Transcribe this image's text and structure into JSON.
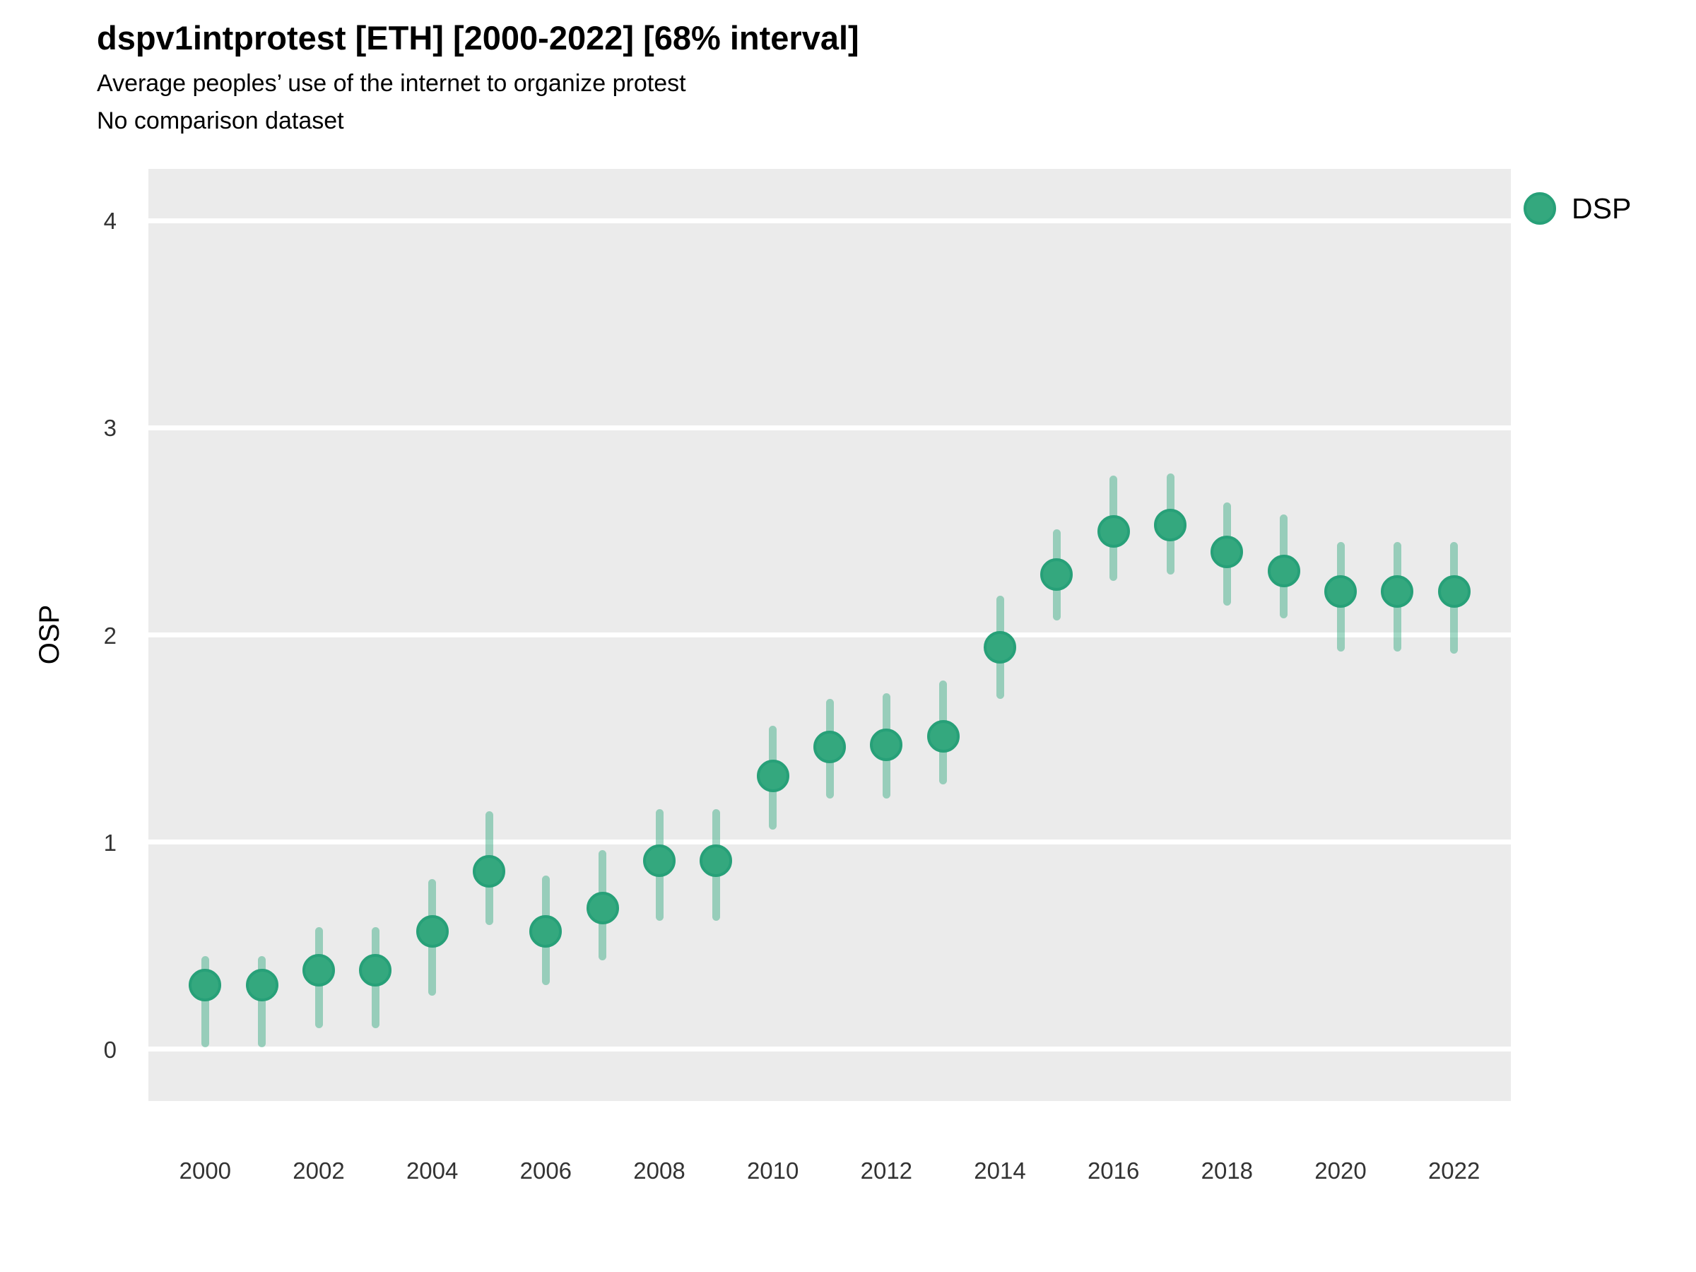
{
  "header": {
    "title": "dspv1intprotest [ETH] [2000-2022] [68% interval]",
    "subtitle": "Average peoples’ use of the internet to organize protest",
    "note": "No comparison dataset"
  },
  "colors": {
    "point_fill": "#34a87e",
    "point_border": "#27a078",
    "error_bar": "rgba(49, 169, 126, 0.45)",
    "panel_background": "#ebebeb",
    "gridline": "#ffffff",
    "tick_text": "#333333",
    "text": "#000000"
  },
  "chart_data": {
    "type": "scatter",
    "title": "dspv1intprotest [ETH] [2000-2022] [68% interval]",
    "subtitle": "Average peoples’ use of the internet to organize protest",
    "note": "No comparison dataset",
    "interval": "68% interval",
    "xlabel": "",
    "ylabel": "OSP",
    "xlim": [
      1999,
      2023
    ],
    "ylim": [
      -0.25,
      4.25
    ],
    "x_ticks": [
      2000,
      2002,
      2004,
      2006,
      2008,
      2010,
      2012,
      2014,
      2016,
      2018,
      2020,
      2022
    ],
    "y_ticks": [
      0,
      1,
      2,
      3,
      4
    ],
    "grid": "horizontal-major-only",
    "legend_position": "top-right",
    "series": [
      {
        "name": "DSP",
        "points": [
          {
            "year": 2000,
            "value": 0.31,
            "lower": 0.01,
            "upper": 0.45
          },
          {
            "year": 2001,
            "value": 0.31,
            "lower": 0.01,
            "upper": 0.45
          },
          {
            "year": 2002,
            "value": 0.38,
            "lower": 0.1,
            "upper": 0.59
          },
          {
            "year": 2003,
            "value": 0.38,
            "lower": 0.1,
            "upper": 0.59
          },
          {
            "year": 2004,
            "value": 0.57,
            "lower": 0.26,
            "upper": 0.82
          },
          {
            "year": 2005,
            "value": 0.86,
            "lower": 0.6,
            "upper": 1.15
          },
          {
            "year": 2006,
            "value": 0.57,
            "lower": 0.31,
            "upper": 0.84
          },
          {
            "year": 2007,
            "value": 0.68,
            "lower": 0.43,
            "upper": 0.96
          },
          {
            "year": 2008,
            "value": 0.91,
            "lower": 0.62,
            "upper": 1.16
          },
          {
            "year": 2009,
            "value": 0.91,
            "lower": 0.62,
            "upper": 1.16
          },
          {
            "year": 2010,
            "value": 1.32,
            "lower": 1.06,
            "upper": 1.56
          },
          {
            "year": 2011,
            "value": 1.46,
            "lower": 1.21,
            "upper": 1.69
          },
          {
            "year": 2012,
            "value": 1.47,
            "lower": 1.21,
            "upper": 1.72
          },
          {
            "year": 2013,
            "value": 1.51,
            "lower": 1.28,
            "upper": 1.78
          },
          {
            "year": 2014,
            "value": 1.94,
            "lower": 1.69,
            "upper": 2.19
          },
          {
            "year": 2015,
            "value": 2.29,
            "lower": 2.07,
            "upper": 2.51
          },
          {
            "year": 2016,
            "value": 2.5,
            "lower": 2.26,
            "upper": 2.77
          },
          {
            "year": 2017,
            "value": 2.53,
            "lower": 2.29,
            "upper": 2.78
          },
          {
            "year": 2018,
            "value": 2.4,
            "lower": 2.14,
            "upper": 2.64
          },
          {
            "year": 2019,
            "value": 2.31,
            "lower": 2.08,
            "upper": 2.58
          },
          {
            "year": 2020,
            "value": 2.21,
            "lower": 1.92,
            "upper": 2.45
          },
          {
            "year": 2021,
            "value": 2.21,
            "lower": 1.92,
            "upper": 2.45
          },
          {
            "year": 2022,
            "value": 2.21,
            "lower": 1.91,
            "upper": 2.45
          }
        ]
      }
    ]
  }
}
